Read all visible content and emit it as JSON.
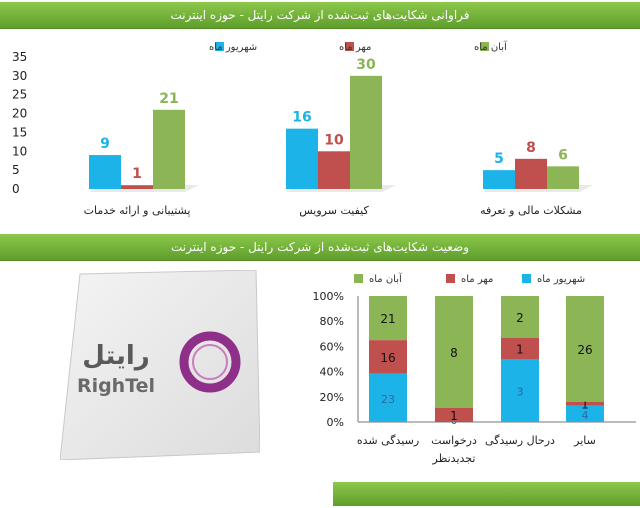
{
  "top_banner": {
    "title": "فراوانی شکایت‌های ثبت‌شده از شرکت رایتل - حوزه اینترنت"
  },
  "bottom_banner": {
    "title": "وضعیت شکایت‌های ثبت‌شده از شرکت رایتل - حوزه اینترنت"
  },
  "logo": {
    "brand_fa": "رایتل",
    "brand_en": "RighTel"
  },
  "colors": {
    "banner": "#7ab840",
    "shahrivar": "#1cb3e8",
    "mehr": "#c0504d",
    "aban": "#8cb556"
  },
  "chart_data": [
    {
      "type": "bar",
      "title": "",
      "categories": [
        "پشتیبانی و ارائه خدمات",
        "کیفیت سرویس",
        "مشکلات مالی و تعرفه"
      ],
      "series": [
        {
          "name": "شهریور ماه",
          "values": [
            9,
            16,
            5
          ],
          "color": "#1cb3e8"
        },
        {
          "name": "مهر ماه",
          "values": [
            1,
            10,
            8
          ],
          "color": "#c0504d"
        },
        {
          "name": "آبان ماه",
          "values": [
            21,
            30,
            6
          ],
          "color": "#8cb556"
        }
      ],
      "legend_order": [
        "آبان ماه",
        "مهر ماه",
        "شهریور ماه"
      ],
      "ylim": [
        0,
        35
      ],
      "yticks": [
        "0",
        "5",
        "10",
        "15",
        "20",
        "25",
        "30",
        "35"
      ],
      "grid": false,
      "legend_position": "top"
    },
    {
      "type": "bar",
      "stacked": "percent",
      "title": "",
      "categories": [
        "رسیدگی شده",
        "درخواست تجدیدنظر",
        "درحال رسیدگی",
        "سایر"
      ],
      "series": [
        {
          "name": "شهریور ماه",
          "values": [
            23,
            0,
            3,
            4
          ],
          "color": "#1cb3e8"
        },
        {
          "name": "مهر ماه",
          "values": [
            16,
            1,
            1,
            1
          ],
          "color": "#c0504d"
        },
        {
          "name": "آبان ماه",
          "values": [
            21,
            8,
            2,
            26
          ],
          "color": "#8cb556"
        }
      ],
      "legend_order": [
        "آبان ماه",
        "مهر ماه",
        "شهریور ماه"
      ],
      "ylim": [
        0,
        100
      ],
      "yticks": [
        "0%",
        "20%",
        "40%",
        "60%",
        "80%",
        "100%"
      ],
      "grid": false,
      "legend_position": "top"
    }
  ]
}
